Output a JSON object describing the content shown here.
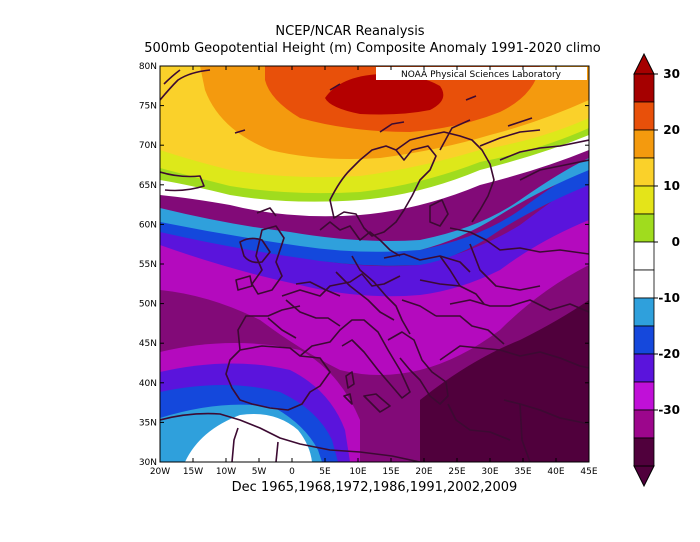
{
  "title": {
    "line1": "NCEP/NCAR Reanalysis",
    "line2": "500mb Geopotential Height (m) Composite Anomaly 1991-2020 climo"
  },
  "caption": "Dec 1965,1968,1972,1986,1991,2002,2009",
  "credit": "NOAA Physical Sciences Laboratory",
  "axes": {
    "lon_labels": [
      "20W",
      "15W",
      "10W",
      "5W",
      "0",
      "5E",
      "10E",
      "15E",
      "20E",
      "25E",
      "30E",
      "35E",
      "40E",
      "45E"
    ],
    "lat_labels": [
      "80N",
      "75N",
      "70N",
      "65N",
      "60N",
      "55N",
      "50N",
      "45N",
      "40N",
      "35N",
      "30N"
    ]
  },
  "colorbar": {
    "labels": [
      "30",
      "20",
      "10",
      "0",
      "-10",
      "-20",
      "-30"
    ],
    "colors": [
      "#a50000",
      "#e8500a",
      "#f49a0e",
      "#fad12a",
      "#e4e419",
      "#a0dc1e",
      "#ffffff",
      "#ffffff",
      "#2fa0dc",
      "#1548dc",
      "#5a14dc",
      "#c010d8",
      "#9c068c",
      "#50003c"
    ]
  },
  "fields": {
    "positive_core_color": "#b40000",
    "negative_core_color": "#50003c"
  }
}
